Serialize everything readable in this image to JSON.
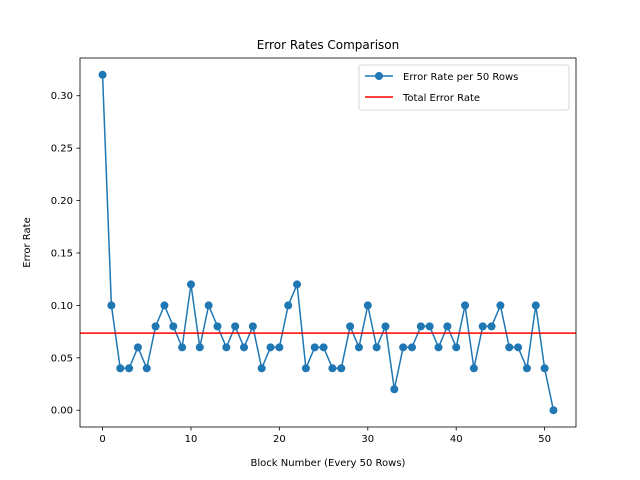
{
  "chart_data": {
    "type": "line",
    "title": "Error Rates Comparison",
    "xlabel": "Block Number (Every 50 Rows)",
    "ylabel": "Error Rate",
    "xlim": [
      -2.55,
      53.55
    ],
    "ylim": [
      -0.016,
      0.336
    ],
    "xticks": [
      0,
      10,
      20,
      30,
      40,
      50
    ],
    "xtick_labels": [
      "0",
      "10",
      "20",
      "30",
      "40",
      "50"
    ],
    "yticks": [
      0.0,
      0.05,
      0.1,
      0.15,
      0.2,
      0.25,
      0.3
    ],
    "ytick_labels": [
      "0.00",
      "0.05",
      "0.10",
      "0.15",
      "0.20",
      "0.25",
      "0.30"
    ],
    "grid": false,
    "legend_position": "top-right",
    "series": [
      {
        "name": "Error Rate per 50 Rows",
        "color": "#1f77b4",
        "marker": "circle",
        "x": [
          0,
          1,
          2,
          3,
          4,
          5,
          6,
          7,
          8,
          9,
          10,
          11,
          12,
          13,
          14,
          15,
          16,
          17,
          18,
          19,
          20,
          21,
          22,
          23,
          24,
          25,
          26,
          27,
          28,
          29,
          30,
          31,
          32,
          33,
          34,
          35,
          36,
          37,
          38,
          39,
          40,
          41,
          42,
          43,
          44,
          45,
          46,
          47,
          48,
          49,
          50,
          51
        ],
        "values": [
          0.32,
          0.1,
          0.04,
          0.04,
          0.06,
          0.04,
          0.08,
          0.1,
          0.08,
          0.06,
          0.12,
          0.06,
          0.1,
          0.08,
          0.06,
          0.08,
          0.06,
          0.08,
          0.04,
          0.06,
          0.06,
          0.1,
          0.12,
          0.04,
          0.06,
          0.06,
          0.04,
          0.04,
          0.08,
          0.06,
          0.1,
          0.06,
          0.08,
          0.02,
          0.06,
          0.06,
          0.08,
          0.08,
          0.06,
          0.08,
          0.06,
          0.1,
          0.04,
          0.08,
          0.08,
          0.1,
          0.06,
          0.06,
          0.04,
          0.1,
          0.04,
          0.0
        ]
      }
    ],
    "hlines": [
      {
        "name": "Total Error Rate",
        "value": 0.0735,
        "color": "#ff0000"
      }
    ]
  }
}
